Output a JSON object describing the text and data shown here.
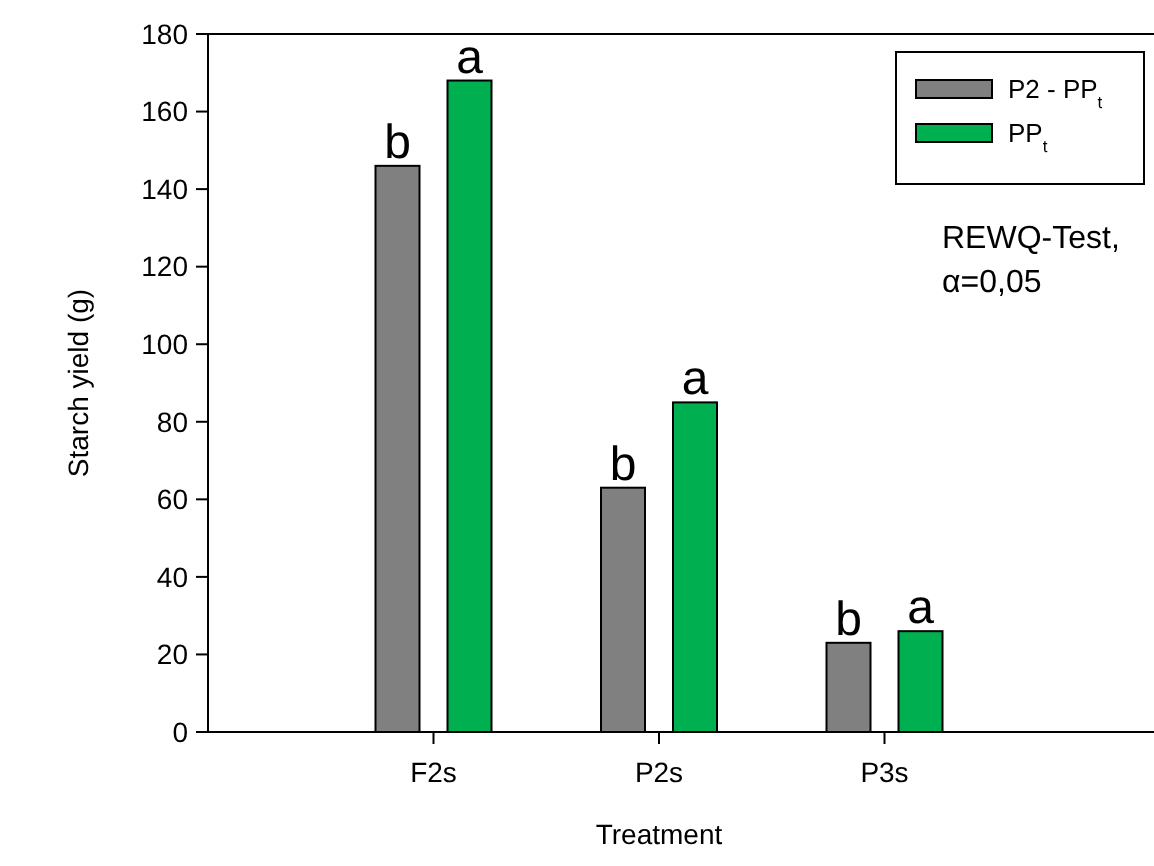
{
  "chart_data": {
    "type": "bar",
    "xlabel": "Treatment",
    "ylabel": "Starch yield (g)",
    "categories": [
      "F2s",
      "P2s",
      "P3s"
    ],
    "series": [
      {
        "name": "P2 - PP$_{t}$",
        "color": "#808080",
        "values": [
          146,
          63,
          23
        ],
        "value_labels": [
          "b",
          "b",
          "b"
        ]
      },
      {
        "name": "PP$_{t}$",
        "color": "#00b050",
        "values": [
          168,
          85,
          26
        ],
        "value_labels": [
          "a",
          "a",
          "a"
        ]
      }
    ],
    "ylim": [
      0,
      180
    ],
    "yticks": [
      0,
      20,
      40,
      60,
      80,
      100,
      120,
      140,
      160,
      180
    ],
    "grid": false,
    "legend": "top right",
    "annotations": [
      "REWQ-Test,\nα=0,05"
    ]
  }
}
